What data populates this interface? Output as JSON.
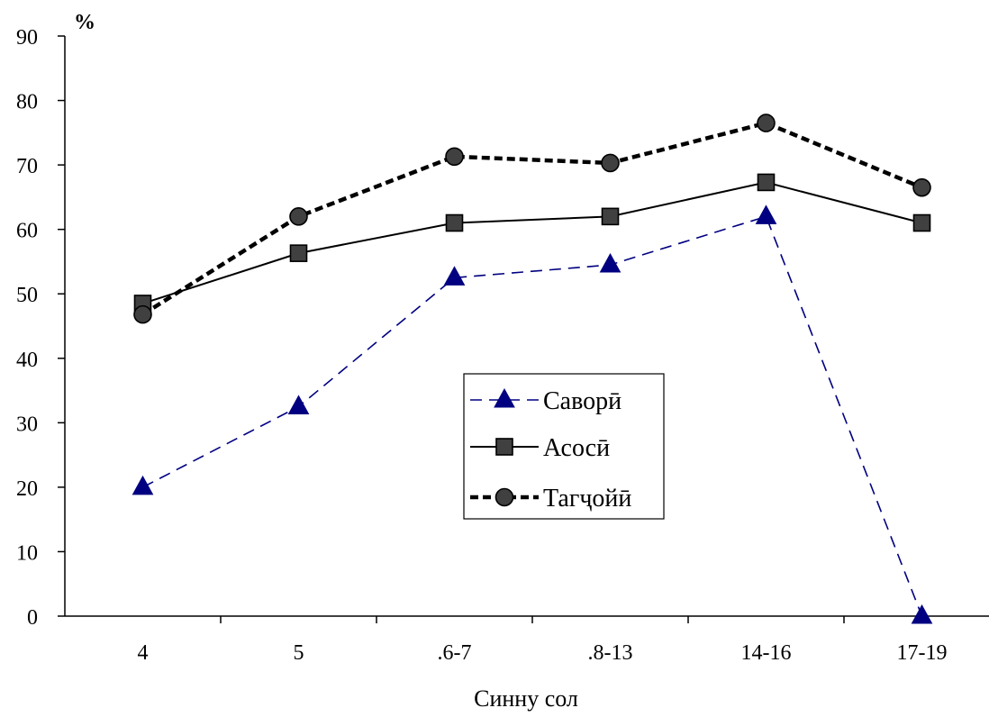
{
  "chart_data": {
    "type": "line",
    "categories": [
      "4",
      "5",
      ".6-7",
      ".8-13",
      "14-16",
      "17-19"
    ],
    "series": [
      {
        "name": "Саворӣ",
        "values": [
          20,
          32.5,
          52.5,
          54.5,
          62,
          0
        ],
        "color": "#000080",
        "line_style": "dashed",
        "marker": "triangle"
      },
      {
        "name": "Асосӣ",
        "values": [
          48.5,
          56.3,
          61,
          62,
          67.3,
          61
        ],
        "color": "#000000",
        "line_style": "solid",
        "marker": "square"
      },
      {
        "name": "Тагҷойӣ",
        "values": [
          46.8,
          62,
          71.3,
          70.3,
          76.5,
          66.5
        ],
        "color": "#000000",
        "line_style": "bold-dashed",
        "marker": "circle"
      }
    ],
    "y_unit": "%",
    "xlabel": "Синну сол",
    "ylim": [
      0,
      90
    ],
    "yticks": [
      0,
      10,
      20,
      30,
      40,
      50,
      60,
      70,
      80,
      90
    ],
    "grid": false,
    "legend_position": "center"
  }
}
